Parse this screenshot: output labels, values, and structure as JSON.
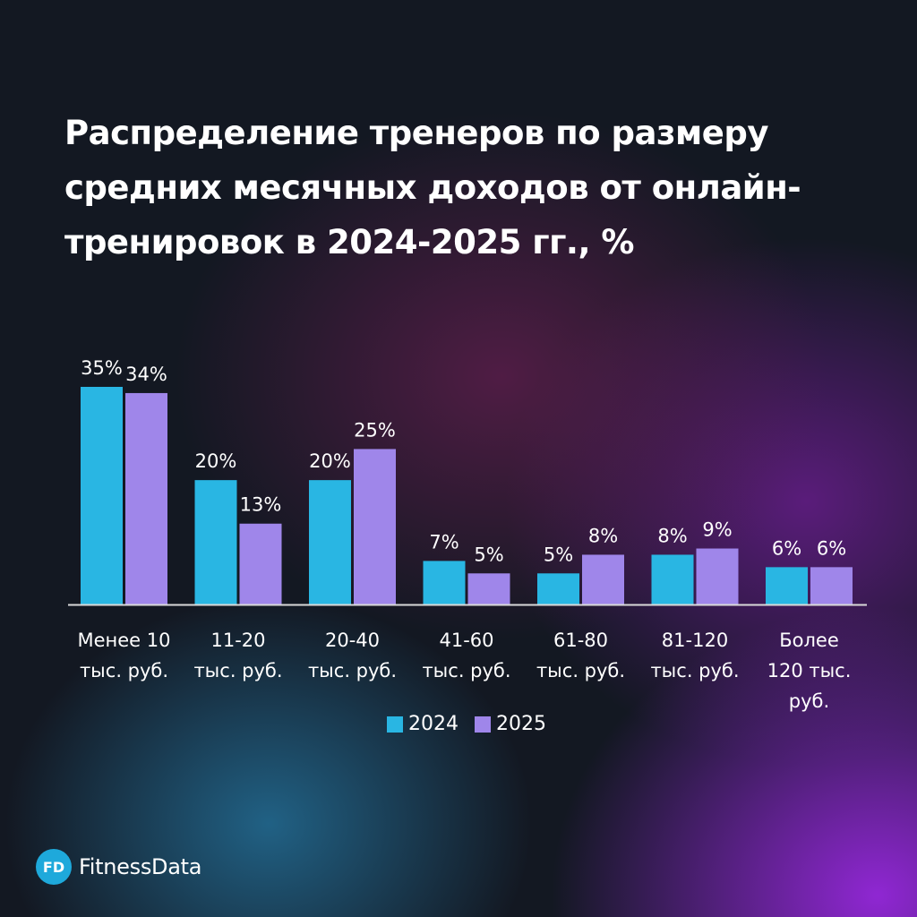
{
  "chart_data": {
    "type": "bar",
    "title": "Распределение тренеров по размеру средних месячных доходов от онлайн-тренировок в 2024-2025 гг., %",
    "categories": [
      [
        "Менее 10",
        "тыс. руб."
      ],
      [
        "11-20",
        "тыс. руб."
      ],
      [
        "20-40",
        "тыс. руб."
      ],
      [
        "41-60",
        "тыс. руб."
      ],
      [
        "61-80",
        "тыс. руб."
      ],
      [
        "81-120",
        "тыс. руб."
      ],
      [
        "Более",
        "120 тыс.",
        "руб."
      ]
    ],
    "series": [
      {
        "name": "2024",
        "color": "#29b6e3",
        "values": [
          35,
          20,
          20,
          7,
          5,
          8,
          6
        ]
      },
      {
        "name": "2025",
        "color": "#9f86ea",
        "values": [
          34,
          13,
          25,
          5,
          8,
          9,
          6
        ]
      }
    ],
    "value_suffix": "%",
    "ylim": [
      0,
      35
    ],
    "legend_position": "bottom"
  },
  "brand": {
    "badge": "FD",
    "name": "FitnessData"
  }
}
